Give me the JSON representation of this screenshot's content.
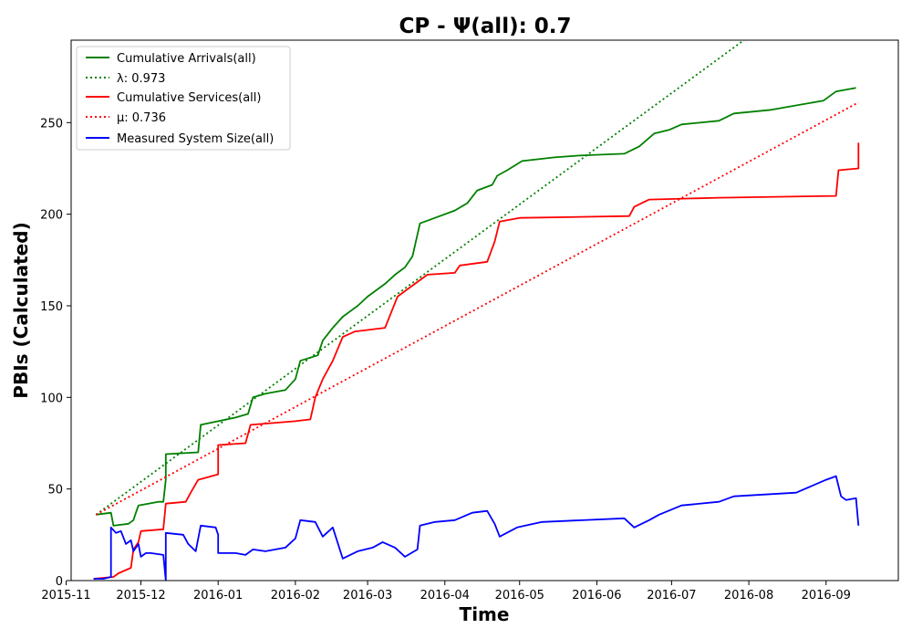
{
  "chart_data": {
    "type": "line",
    "title": "CP -  Ψ(all): 0.7",
    "xlabel": "Time",
    "ylabel": "PBIs (Calculated)",
    "xlim": [
      "2015-11-03",
      "2016-09-30"
    ],
    "ylim": [
      0,
      295
    ],
    "x_ticks": [
      "2015-11-01",
      "2015-12-01",
      "2016-01-01",
      "2016-02-01",
      "2016-03-01",
      "2016-04-01",
      "2016-05-01",
      "2016-06-01",
      "2016-07-01",
      "2016-08-01",
      "2016-09-01"
    ],
    "x_tick_labels": [
      "2015-11",
      "2015-12",
      "2016-01",
      "2016-02",
      "2016-03",
      "2016-04",
      "2016-05",
      "2016-06",
      "2016-07",
      "2016-08",
      "2016-09"
    ],
    "y_ticks": [
      0,
      50,
      100,
      150,
      200,
      250
    ],
    "y_tick_labels": [
      "0",
      "50",
      "100",
      "150",
      "200",
      "250"
    ],
    "grid": false,
    "legend_position": "top-left",
    "series": [
      {
        "name": "Cumulative Arrivals(all)",
        "style": "solid",
        "color": "#008000",
        "points": [
          [
            "2015-11-13",
            36
          ],
          [
            "2015-11-19",
            37
          ],
          [
            "2015-11-20",
            30
          ],
          [
            "2015-11-26",
            31
          ],
          [
            "2015-11-28",
            33
          ],
          [
            "2015-11-29",
            37
          ],
          [
            "2015-11-30",
            41
          ],
          [
            "2015-12-08",
            43
          ],
          [
            "2015-12-10",
            43
          ],
          [
            "2015-12-11",
            55
          ],
          [
            "2015-12-11",
            69
          ],
          [
            "2015-12-24",
            70
          ],
          [
            "2015-12-25",
            85
          ],
          [
            "2016-01-01",
            87
          ],
          [
            "2016-01-08",
            89
          ],
          [
            "2016-01-13",
            91
          ],
          [
            "2016-01-15",
            100
          ],
          [
            "2016-01-20",
            102
          ],
          [
            "2016-01-28",
            104
          ],
          [
            "2016-02-01",
            110
          ],
          [
            "2016-02-03",
            120
          ],
          [
            "2016-02-10",
            123
          ],
          [
            "2016-02-12",
            131
          ],
          [
            "2016-02-16",
            138
          ],
          [
            "2016-02-20",
            144
          ],
          [
            "2016-02-26",
            150
          ],
          [
            "2016-03-01",
            155
          ],
          [
            "2016-03-08",
            162
          ],
          [
            "2016-03-12",
            167
          ],
          [
            "2016-03-16",
            171
          ],
          [
            "2016-03-19",
            177
          ],
          [
            "2016-03-22",
            195
          ],
          [
            "2016-03-28",
            198
          ],
          [
            "2016-04-05",
            202
          ],
          [
            "2016-04-10",
            206
          ],
          [
            "2016-04-14",
            213
          ],
          [
            "2016-04-20",
            216
          ],
          [
            "2016-04-22",
            221
          ],
          [
            "2016-04-26",
            224
          ],
          [
            "2016-05-02",
            229
          ],
          [
            "2016-05-15",
            231
          ],
          [
            "2016-05-25",
            232
          ],
          [
            "2016-06-12",
            233
          ],
          [
            "2016-06-18",
            237
          ],
          [
            "2016-06-24",
            244
          ],
          [
            "2016-06-30",
            246
          ],
          [
            "2016-07-05",
            249
          ],
          [
            "2016-07-20",
            251
          ],
          [
            "2016-07-26",
            255
          ],
          [
            "2016-08-10",
            257
          ],
          [
            "2016-08-31",
            262
          ],
          [
            "2016-09-05",
            267
          ],
          [
            "2016-09-13",
            269
          ]
        ]
      },
      {
        "name": "λ: 0.973",
        "style": "dotted",
        "color": "#008000",
        "points": [
          [
            "2015-11-13",
            36
          ],
          [
            "2016-08-04",
            300
          ]
        ]
      },
      {
        "name": "Cumulative Services(all)",
        "style": "solid",
        "color": "#ff0000",
        "points": [
          [
            "2015-11-12",
            1
          ],
          [
            "2015-11-20",
            2
          ],
          [
            "2015-11-22",
            4
          ],
          [
            "2015-11-27",
            7
          ],
          [
            "2015-11-28",
            17
          ],
          [
            "2015-11-30",
            21
          ],
          [
            "2015-12-01",
            27
          ],
          [
            "2015-12-10",
            28
          ],
          [
            "2015-12-11",
            42
          ],
          [
            "2015-12-19",
            43
          ],
          [
            "2015-12-21",
            48
          ],
          [
            "2015-12-24",
            55
          ],
          [
            "2016-01-01",
            58
          ],
          [
            "2016-01-01",
            74
          ],
          [
            "2016-01-12",
            75
          ],
          [
            "2016-01-14",
            85
          ],
          [
            "2016-02-01",
            87
          ],
          [
            "2016-02-07",
            88
          ],
          [
            "2016-02-09",
            100
          ],
          [
            "2016-02-12",
            110
          ],
          [
            "2016-02-16",
            120
          ],
          [
            "2016-02-20",
            133
          ],
          [
            "2016-02-25",
            136
          ],
          [
            "2016-03-08",
            138
          ],
          [
            "2016-03-13",
            155
          ],
          [
            "2016-03-18",
            160
          ],
          [
            "2016-03-21",
            163
          ],
          [
            "2016-03-25",
            167
          ],
          [
            "2016-04-05",
            168
          ],
          [
            "2016-04-07",
            172
          ],
          [
            "2016-04-18",
            174
          ],
          [
            "2016-04-21",
            185
          ],
          [
            "2016-04-23",
            196
          ],
          [
            "2016-05-01",
            198
          ],
          [
            "2016-06-14",
            199
          ],
          [
            "2016-06-16",
            204
          ],
          [
            "2016-06-22",
            208
          ],
          [
            "2016-07-20",
            209
          ],
          [
            "2016-09-05",
            210
          ],
          [
            "2016-09-06",
            224
          ],
          [
            "2016-09-14",
            225
          ],
          [
            "2016-09-14",
            239
          ]
        ]
      },
      {
        "name": "μ: 0.736",
        "style": "dotted",
        "color": "#ff0000",
        "points": [
          [
            "2015-11-13",
            36
          ],
          [
            "2016-09-14",
            261
          ]
        ]
      },
      {
        "name": "Measured System Size(all)",
        "style": "solid",
        "color": "#0000ff",
        "points": [
          [
            "2015-11-12",
            1
          ],
          [
            "2015-11-16",
            1
          ],
          [
            "2015-11-19",
            2
          ],
          [
            "2015-11-19",
            29
          ],
          [
            "2015-11-21",
            26
          ],
          [
            "2015-11-23",
            27
          ],
          [
            "2015-11-25",
            20
          ],
          [
            "2015-11-27",
            22
          ],
          [
            "2015-11-28",
            16
          ],
          [
            "2015-11-30",
            20
          ],
          [
            "2015-12-01",
            13
          ],
          [
            "2015-12-03",
            15
          ],
          [
            "2015-12-05",
            15
          ],
          [
            "2015-12-10",
            14
          ],
          [
            "2015-12-11",
            0
          ],
          [
            "2015-12-11",
            26
          ],
          [
            "2015-12-18",
            25
          ],
          [
            "2015-12-20",
            20
          ],
          [
            "2015-12-23",
            16
          ],
          [
            "2015-12-25",
            30
          ],
          [
            "2015-12-31",
            29
          ],
          [
            "2016-01-01",
            25
          ],
          [
            "2016-01-01",
            15
          ],
          [
            "2016-01-08",
            15
          ],
          [
            "2016-01-12",
            14
          ],
          [
            "2016-01-15",
            17
          ],
          [
            "2016-01-20",
            16
          ],
          [
            "2016-01-28",
            18
          ],
          [
            "2016-02-01",
            23
          ],
          [
            "2016-02-03",
            33
          ],
          [
            "2016-02-09",
            32
          ],
          [
            "2016-02-12",
            24
          ],
          [
            "2016-02-16",
            29
          ],
          [
            "2016-02-20",
            12
          ],
          [
            "2016-02-26",
            16
          ],
          [
            "2016-03-03",
            18
          ],
          [
            "2016-03-07",
            21
          ],
          [
            "2016-03-12",
            18
          ],
          [
            "2016-03-16",
            13
          ],
          [
            "2016-03-21",
            17
          ],
          [
            "2016-03-22",
            30
          ],
          [
            "2016-03-28",
            32
          ],
          [
            "2016-04-05",
            33
          ],
          [
            "2016-04-12",
            37
          ],
          [
            "2016-04-18",
            38
          ],
          [
            "2016-04-21",
            31
          ],
          [
            "2016-04-23",
            24
          ],
          [
            "2016-04-30",
            29
          ],
          [
            "2016-05-10",
            32
          ],
          [
            "2016-06-12",
            34
          ],
          [
            "2016-06-16",
            29
          ],
          [
            "2016-06-22",
            33
          ],
          [
            "2016-06-26",
            36
          ],
          [
            "2016-07-05",
            41
          ],
          [
            "2016-07-20",
            43
          ],
          [
            "2016-07-26",
            46
          ],
          [
            "2016-08-20",
            48
          ],
          [
            "2016-09-01",
            55
          ],
          [
            "2016-09-05",
            57
          ],
          [
            "2016-09-07",
            46
          ],
          [
            "2016-09-09",
            44
          ],
          [
            "2016-09-13",
            45
          ],
          [
            "2016-09-14",
            30
          ]
        ]
      }
    ]
  }
}
